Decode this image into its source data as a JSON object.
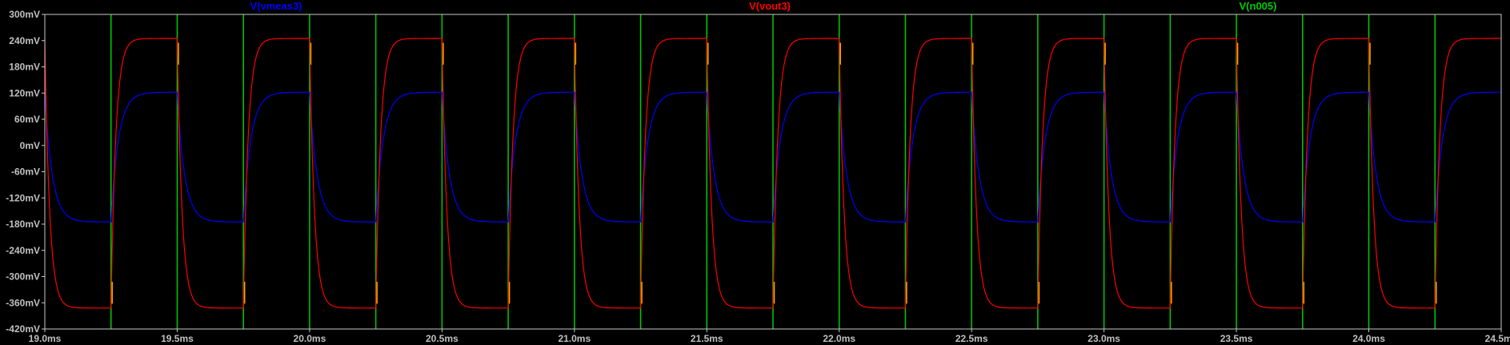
{
  "chart_data": {
    "type": "line",
    "title": "",
    "xlabel": "",
    "ylabel": "",
    "xlim": [
      19.0,
      24.5
    ],
    "ylim": [
      -420,
      300
    ],
    "grid": false,
    "legend_position": "top",
    "x_ticks": [
      "19.0ms",
      "19.5ms",
      "20.0ms",
      "20.5ms",
      "21.0ms",
      "21.5ms",
      "22.0ms",
      "22.5ms",
      "23.0ms",
      "23.5ms",
      "24.0ms",
      "24.5ms"
    ],
    "y_ticks": [
      "300mV",
      "240mV",
      "180mV",
      "120mV",
      "60mV",
      "0mV",
      "-60mV",
      "-120mV",
      "-180mV",
      "-240mV",
      "-300mV",
      "-360mV",
      "-420mV"
    ],
    "series": [
      {
        "name": "V(vmeas3)",
        "color": "#0000ff",
        "x_unit": "ms",
        "y_unit": "mV",
        "period_ms": 0.5,
        "high_time_ms": 0.25,
        "high_mV": 122,
        "low_mV": -175,
        "time_constant_ms": 0.028
      },
      {
        "name": "V(vout3)",
        "color": "#ff0000",
        "x_unit": "ms",
        "y_unit": "mV",
        "period_ms": 0.5,
        "high_time_ms": 0.25,
        "high_mV": 245,
        "low_mV": -372,
        "time_constant_ms": 0.018
      },
      {
        "name": "V(n005)",
        "color": "#00cc00",
        "x_unit": "ms",
        "y_unit": "mV",
        "style": "edges",
        "edges_ms": [
          19.25,
          19.5,
          19.75,
          20.0,
          20.25,
          20.5,
          20.75,
          21.0,
          21.25,
          21.5,
          21.75,
          22.0,
          22.25,
          22.5,
          22.75,
          23.0,
          23.25,
          23.5,
          23.75,
          24.0,
          24.25
        ]
      }
    ],
    "spike_color": "#ffa500"
  }
}
